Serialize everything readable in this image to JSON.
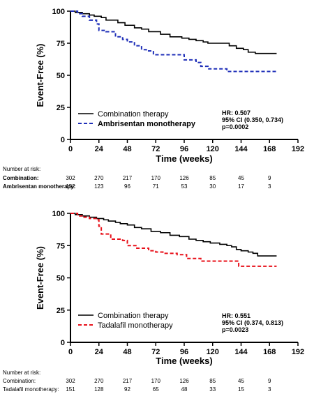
{
  "chart_data": [
    {
      "type": "line",
      "step": true,
      "xlabel": "Time (weeks)",
      "ylabel": "Event-Free (%)",
      "xlim": [
        0,
        192
      ],
      "ylim": [
        0,
        100
      ],
      "x_ticks": [
        0,
        24,
        48,
        72,
        96,
        120,
        144,
        168,
        192
      ],
      "y_ticks": [
        0,
        25,
        50,
        75,
        100
      ],
      "series": [
        {
          "name": "Combination therapy",
          "color": "#000000",
          "dash": "solid",
          "points": [
            [
              0,
              100
            ],
            [
              4,
              99
            ],
            [
              10,
              98
            ],
            [
              16,
              97
            ],
            [
              20,
              96
            ],
            [
              26,
              95
            ],
            [
              30,
              93
            ],
            [
              40,
              91
            ],
            [
              46,
              89
            ],
            [
              54,
              87
            ],
            [
              60,
              86
            ],
            [
              66,
              84
            ],
            [
              76,
              82
            ],
            [
              84,
              80
            ],
            [
              94,
              79
            ],
            [
              100,
              78
            ],
            [
              106,
              77
            ],
            [
              112,
              76
            ],
            [
              116,
              75
            ],
            [
              134,
              73
            ],
            [
              140,
              71
            ],
            [
              146,
              70
            ],
            [
              150,
              68
            ],
            [
              156,
              67
            ],
            [
              174,
              67
            ]
          ]
        },
        {
          "name": "Ambrisentan monotherapy",
          "color": "#1f2fb8",
          "dash": "dashed",
          "points": [
            [
              0,
              100
            ],
            [
              6,
              98
            ],
            [
              10,
              96
            ],
            [
              16,
              93
            ],
            [
              22,
              90
            ],
            [
              24,
              85
            ],
            [
              30,
              84
            ],
            [
              38,
              80
            ],
            [
              44,
              78
            ],
            [
              48,
              76
            ],
            [
              54,
              73
            ],
            [
              60,
              70
            ],
            [
              64,
              69
            ],
            [
              70,
              66
            ],
            [
              80,
              66
            ],
            [
              86,
              66
            ],
            [
              94,
              66
            ],
            [
              96,
              62
            ],
            [
              106,
              60
            ],
            [
              110,
              57
            ],
            [
              116,
              55
            ],
            [
              126,
              55
            ],
            [
              132,
              53
            ],
            [
              174,
              53
            ]
          ]
        }
      ],
      "legend": {
        "location": "bottom-left",
        "entries": [
          "Combination therapy",
          "Ambrisentan monotherapy"
        ],
        "entry_bold": [
          false,
          true
        ]
      },
      "stats": [
        "HR: 0.507",
        "95% CI (0.350, 0.734)",
        "p=0.0002"
      ],
      "risk_table": {
        "header": "Number at risk:",
        "weeks": [
          0,
          24,
          48,
          72,
          96,
          120,
          144,
          168
        ],
        "rows": [
          {
            "label": "Combination:",
            "values": [
              "302",
              "270",
              "217",
              "170",
              "126",
              "85",
              "45",
              "9"
            ]
          },
          {
            "label": "Ambrisentan monotherapy:",
            "values": [
              "152",
              "123",
              "96",
              "71",
              "53",
              "30",
              "17",
              "3"
            ]
          }
        ]
      }
    },
    {
      "type": "line",
      "step": true,
      "xlabel": "Time (weeks)",
      "ylabel": "Event-Free (%)",
      "xlim": [
        0,
        192
      ],
      "ylim": [
        0,
        100
      ],
      "x_ticks": [
        0,
        24,
        48,
        72,
        96,
        120,
        144,
        168,
        192
      ],
      "y_ticks": [
        0,
        25,
        50,
        75,
        100
      ],
      "series": [
        {
          "name": "Combination therapy",
          "color": "#000000",
          "dash": "solid",
          "points": [
            [
              0,
              100
            ],
            [
              4,
              99
            ],
            [
              10,
              98
            ],
            [
              16,
              97
            ],
            [
              22,
              96
            ],
            [
              28,
              95
            ],
            [
              32,
              94
            ],
            [
              38,
              93
            ],
            [
              42,
              92
            ],
            [
              48,
              91
            ],
            [
              54,
              89
            ],
            [
              60,
              88
            ],
            [
              68,
              86
            ],
            [
              76,
              85
            ],
            [
              84,
              83
            ],
            [
              92,
              82
            ],
            [
              100,
              80
            ],
            [
              106,
              79
            ],
            [
              112,
              78
            ],
            [
              118,
              77
            ],
            [
              126,
              76
            ],
            [
              132,
              75
            ],
            [
              136,
              74
            ],
            [
              140,
              72
            ],
            [
              144,
              71
            ],
            [
              150,
              70
            ],
            [
              154,
              69
            ],
            [
              158,
              67
            ],
            [
              174,
              67
            ]
          ]
        },
        {
          "name": "Tadalafil monotherapy",
          "color": "#e8101a",
          "dash": "dashed",
          "points": [
            [
              0,
              100
            ],
            [
              6,
              98
            ],
            [
              10,
              97
            ],
            [
              16,
              96
            ],
            [
              22,
              95
            ],
            [
              24,
              90
            ],
            [
              26,
              84
            ],
            [
              34,
              80
            ],
            [
              44,
              79
            ],
            [
              48,
              75
            ],
            [
              56,
              73
            ],
            [
              66,
              71
            ],
            [
              72,
              70
            ],
            [
              78,
              69
            ],
            [
              90,
              68
            ],
            [
              98,
              65
            ],
            [
              110,
              63
            ],
            [
              132,
              63
            ],
            [
              142,
              59
            ],
            [
              174,
              59
            ]
          ]
        }
      ],
      "legend": {
        "location": "bottom-left",
        "entries": [
          "Combination therapy",
          "Tadalafil monotherapy"
        ],
        "entry_bold": [
          false,
          false
        ]
      },
      "stats": [
        "HR: 0.551",
        "95% CI (0.374, 0.813)",
        "p=0.0023"
      ],
      "risk_table": {
        "header": "Number at risk:",
        "weeks": [
          0,
          24,
          48,
          72,
          96,
          120,
          144,
          168
        ],
        "rows": [
          {
            "label": "Combination:",
            "values": [
              "302",
              "270",
              "217",
              "170",
              "126",
              "85",
              "45",
              "9"
            ]
          },
          {
            "label": "Tadalafil monotherapy:",
            "values": [
              "151",
              "128",
              "92",
              "65",
              "48",
              "33",
              "15",
              "3"
            ]
          }
        ]
      }
    }
  ]
}
